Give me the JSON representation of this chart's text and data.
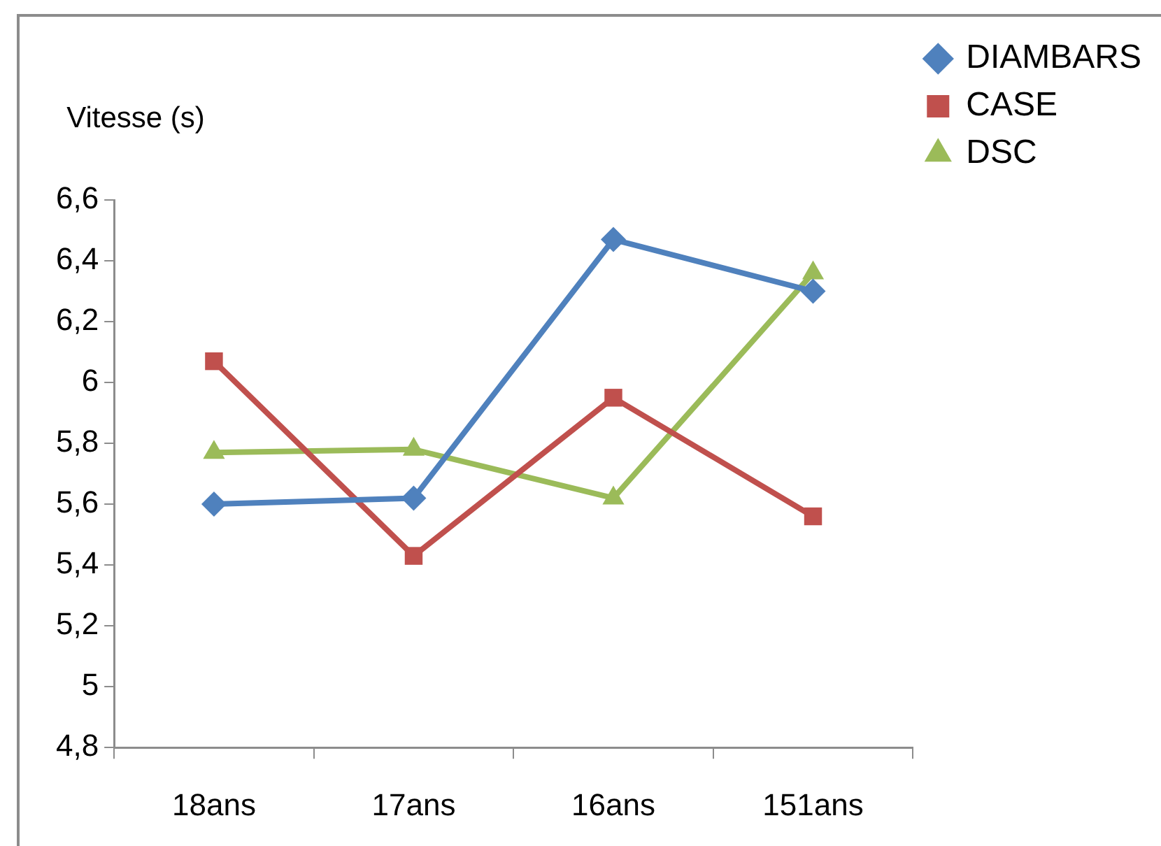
{
  "chart_data": {
    "type": "line",
    "ylabel": "Vitesse (s)",
    "categories": [
      "18ans",
      "17ans",
      "16ans",
      "151ans"
    ],
    "series": [
      {
        "name": "DIAMBARS",
        "color": "#4f81bd",
        "marker": "diamond",
        "values": [
          5.6,
          5.62,
          6.47,
          6.3
        ]
      },
      {
        "name": "CASE",
        "color": "#c0504d",
        "marker": "square",
        "values": [
          6.07,
          5.43,
          5.95,
          5.56
        ]
      },
      {
        "name": "DSC",
        "color": "#9bbb59",
        "marker": "triangle",
        "values": [
          5.77,
          5.78,
          5.62,
          6.36
        ]
      }
    ],
    "ylim": [
      4.8,
      6.6
    ],
    "yticks": [
      {
        "value": 4.8,
        "label": "4,8"
      },
      5,
      {
        "value": 5.2,
        "label": "5,2"
      },
      {
        "value": 5.4,
        "label": "5,4"
      },
      {
        "value": 5.6,
        "label": "5,6"
      },
      {
        "value": 5.8,
        "label": "5,8"
      },
      6,
      {
        "value": 6.2,
        "label": "6,2"
      },
      {
        "value": 6.4,
        "label": "6,4"
      },
      {
        "value": 6.6,
        "label": "6,6"
      }
    ],
    "grid": false,
    "legend": "top right"
  }
}
